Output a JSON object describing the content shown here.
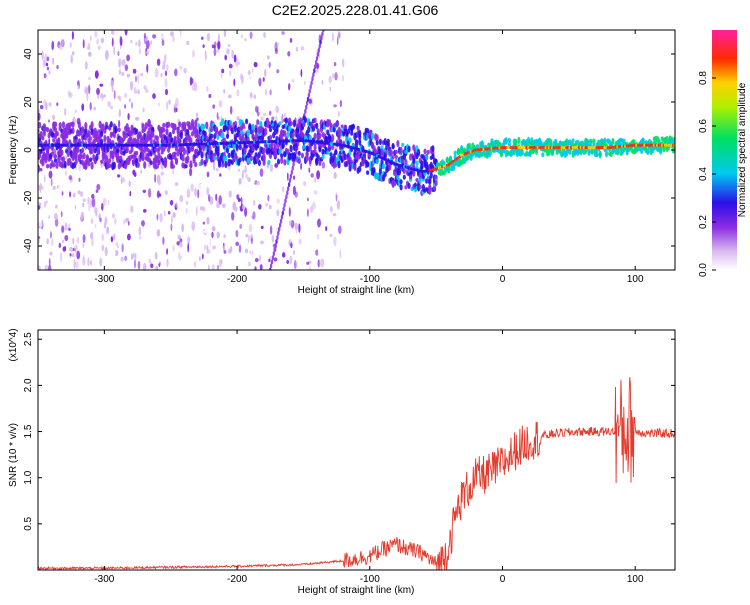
{
  "title": "C2E2.2025.228.01.41.G06",
  "colors": {
    "snr_line": "#e33b2e",
    "axis": "#000000"
  },
  "chart_data": [
    {
      "type": "heatmap",
      "xlabel": "Height of straight line (km)",
      "ylabel": "Frequency (Hz)",
      "xlim": [
        -350,
        130
      ],
      "ylim": [
        -50,
        50
      ],
      "x_ticks": [
        "-300",
        "-200",
        "-100",
        "0",
        "100"
      ],
      "y_ticks": [
        "-40",
        "-20",
        "0",
        "20",
        "40"
      ],
      "colorbar": {
        "label": "Normalized spectral amplitude",
        "range": [
          0,
          1
        ],
        "ticks": [
          "0.0",
          "0.2",
          "0.4",
          "0.6",
          "0.8"
        ],
        "colormap": "rainbow (white→violet→blue→cyan→green→yellow→red→magenta)"
      },
      "ridge": {
        "x": [
          -350,
          -300,
          -250,
          -200,
          -150,
          -120,
          -100,
          -80,
          -60,
          -50,
          -40,
          -30,
          -20,
          0,
          20,
          50,
          80,
          100,
          130
        ],
        "freq": [
          2,
          2,
          2,
          3,
          4,
          2,
          -1,
          -6,
          -9,
          -8,
          -6,
          -2,
          0,
          1,
          1,
          1,
          1,
          2,
          2
        ]
      },
      "streaks": [
        {
          "x": [
            -175,
            -135
          ],
          "freq": [
            -50,
            50
          ]
        }
      ]
    },
    {
      "type": "line",
      "xlabel": "Height of straight line (km)",
      "ylabel": "SNR (10 * v/v)",
      "multiplier": "(x10^4)",
      "xlim": [
        -350,
        130
      ],
      "ylim": [
        0,
        2.6
      ],
      "x_ticks": [
        "-300",
        "-200",
        "-100",
        "0",
        "100"
      ],
      "y_ticks": [
        "0.5",
        "1.0",
        "1.5",
        "2.0",
        "2.5"
      ],
      "series": [
        {
          "x": [
            -350,
            -300,
            -250,
            -200,
            -150,
            -120,
            -100,
            -90,
            -80,
            -70,
            -60,
            -50,
            -45,
            -40,
            -35,
            -30,
            -25,
            -20,
            -10,
            0,
            10,
            20,
            30,
            40,
            60,
            80,
            90,
            95,
            100,
            110,
            130
          ],
          "y": [
            0.02,
            0.02,
            0.03,
            0.04,
            0.06,
            0.1,
            0.15,
            0.22,
            0.28,
            0.22,
            0.18,
            0.06,
            0.1,
            0.3,
            0.6,
            0.8,
            0.9,
            1.0,
            1.05,
            1.15,
            1.3,
            1.4,
            1.45,
            1.48,
            1.5,
            1.5,
            1.5,
            1.55,
            1.5,
            1.48,
            1.48
          ]
        }
      ]
    }
  ]
}
